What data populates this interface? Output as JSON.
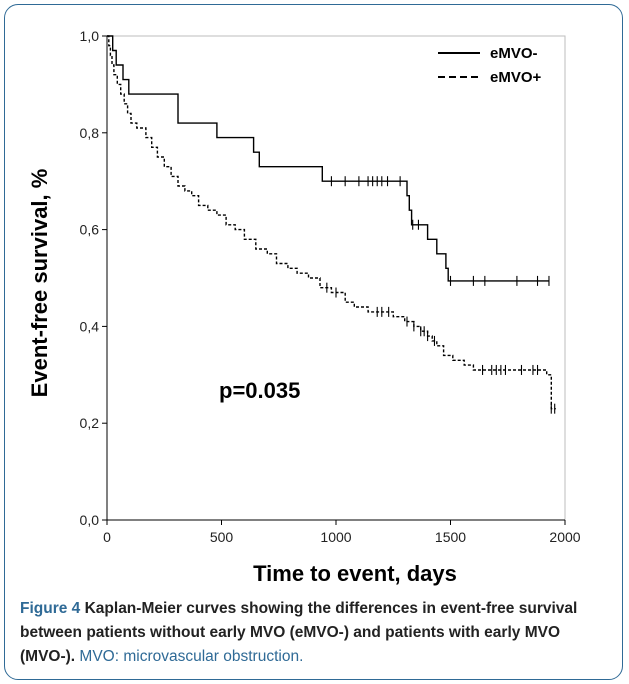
{
  "caption": {
    "label": "Figure 4",
    "bold_text": " Kaplan-Meier curves showing the differences in event-free survival between patients without early MVO (eMVO-) and patients with early MVO (MVO-).",
    "rest_text": " MVO: microvascular obstruction."
  },
  "chart_data": {
    "type": "line",
    "subtype": "kaplan-meier step",
    "xlabel": "Time to event, days",
    "ylabel": "Event-free survival, %",
    "xlim": [
      0,
      2000
    ],
    "ylim": [
      0.0,
      1.0
    ],
    "x_ticks": [
      0,
      500,
      1000,
      1500,
      2000
    ],
    "x_tick_labels": [
      "0",
      "500",
      "1000",
      "1500",
      "2000"
    ],
    "y_ticks": [
      0.0,
      0.2,
      0.4,
      0.6,
      0.8,
      1.0
    ],
    "y_tick_labels": [
      "0,0",
      "0,2",
      "0,4",
      "0,6",
      "0,8",
      "1,0"
    ],
    "grid": false,
    "legend_position": "top-right",
    "annotation": "p=0.035",
    "series": [
      {
        "name": "eMVO-",
        "line_style": "solid",
        "color": "#000000",
        "steps": [
          [
            0,
            1.0
          ],
          [
            25,
            0.97
          ],
          [
            40,
            0.94
          ],
          [
            70,
            0.91
          ],
          [
            95,
            0.88
          ],
          [
            310,
            0.82
          ],
          [
            480,
            0.79
          ],
          [
            640,
            0.76
          ],
          [
            665,
            0.73
          ],
          [
            940,
            0.7
          ],
          [
            1310,
            0.67
          ],
          [
            1320,
            0.64
          ],
          [
            1330,
            0.61
          ],
          [
            1400,
            0.58
          ],
          [
            1440,
            0.55
          ],
          [
            1480,
            0.52
          ],
          [
            1490,
            0.494
          ],
          [
            1930,
            0.494
          ]
        ],
        "censored": [
          980,
          1040,
          1100,
          1140,
          1160,
          1180,
          1200,
          1225,
          1280,
          1335,
          1360,
          1500,
          1600,
          1650,
          1790,
          1880,
          1930
        ]
      },
      {
        "name": "eMVO+",
        "line_style": "dashed",
        "color": "#000000",
        "steps": [
          [
            0,
            1.0
          ],
          [
            8,
            0.98
          ],
          [
            15,
            0.96
          ],
          [
            22,
            0.94
          ],
          [
            30,
            0.92
          ],
          [
            45,
            0.9
          ],
          [
            60,
            0.88
          ],
          [
            75,
            0.86
          ],
          [
            90,
            0.84
          ],
          [
            105,
            0.82
          ],
          [
            130,
            0.81
          ],
          [
            170,
            0.79
          ],
          [
            195,
            0.77
          ],
          [
            220,
            0.75
          ],
          [
            250,
            0.73
          ],
          [
            280,
            0.71
          ],
          [
            310,
            0.69
          ],
          [
            340,
            0.68
          ],
          [
            370,
            0.67
          ],
          [
            400,
            0.65
          ],
          [
            440,
            0.64
          ],
          [
            480,
            0.63
          ],
          [
            520,
            0.61
          ],
          [
            560,
            0.6
          ],
          [
            600,
            0.58
          ],
          [
            650,
            0.56
          ],
          [
            700,
            0.55
          ],
          [
            740,
            0.53
          ],
          [
            790,
            0.52
          ],
          [
            830,
            0.51
          ],
          [
            880,
            0.5
          ],
          [
            930,
            0.48
          ],
          [
            980,
            0.47
          ],
          [
            1040,
            0.45
          ],
          [
            1080,
            0.44
          ],
          [
            1140,
            0.43
          ],
          [
            1250,
            0.42
          ],
          [
            1300,
            0.41
          ],
          [
            1340,
            0.4
          ],
          [
            1370,
            0.39
          ],
          [
            1400,
            0.38
          ],
          [
            1420,
            0.37
          ],
          [
            1440,
            0.36
          ],
          [
            1470,
            0.34
          ],
          [
            1510,
            0.33
          ],
          [
            1560,
            0.32
          ],
          [
            1600,
            0.31
          ],
          [
            1920,
            0.3
          ],
          [
            1940,
            0.23
          ],
          [
            1960,
            0.23
          ]
        ],
        "censored": [
          960,
          1000,
          1180,
          1200,
          1230,
          1310,
          1340,
          1370,
          1385,
          1400,
          1430,
          1640,
          1680,
          1700,
          1720,
          1740,
          1810,
          1860,
          1880,
          1940,
          1955
        ]
      }
    ]
  }
}
